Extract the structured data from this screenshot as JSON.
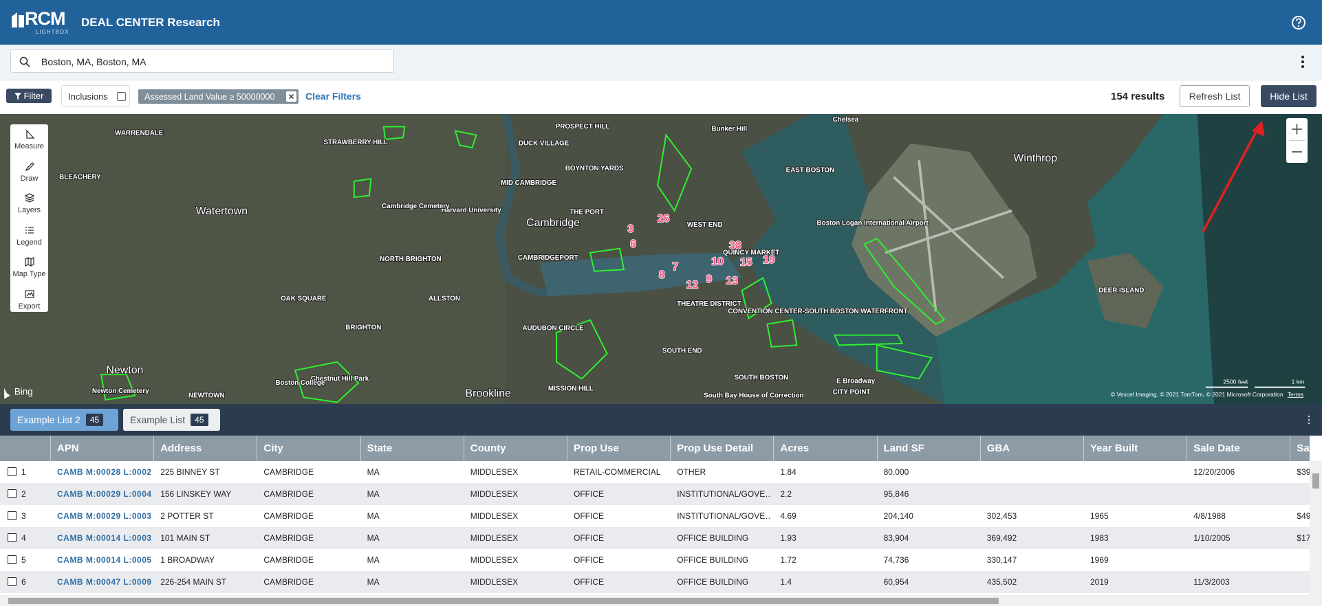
{
  "header": {
    "logo": "RCM",
    "logo_sub": "LIGHTBOX",
    "title": "DEAL CENTER Research"
  },
  "search": {
    "query": "Boston, MA, Boston, MA"
  },
  "filters": {
    "filter_button": "Filter",
    "inclusions": "Inclusions",
    "chip": "Assessed Land Value ≥ 50000000",
    "clear": "Clear Filters",
    "results": "154 results",
    "refresh": "Refresh List",
    "hide": "Hide List"
  },
  "map": {
    "tools": [
      "Measure",
      "Draw",
      "Layers",
      "Legend",
      "Map Type",
      "Export"
    ],
    "labels": [
      "Watertown",
      "Cambridge",
      "Newton",
      "Brookline",
      "Winthrop",
      "EAST BOSTON",
      "NORTH BRIGHTON",
      "ALLSTON",
      "BRIGHTON",
      "OAK SQUARE",
      "SOUTH END",
      "SOUTH BOSTON",
      "DEER ISLAND",
      "STRAWBERRY HILL",
      "PROSPECT HILL",
      "DUCK VILLAGE",
      "BOYNTON YARDS",
      "MID CAMBRIDGE",
      "THE PORT",
      "CAMBRIDGEPORT",
      "WARRENDALE",
      "BLEACHERY",
      "Bunker Hill",
      "Chelsea",
      "AUDUBON CIRCLE",
      "MISSION HILL",
      "WEST END",
      "QUINCY MARKET",
      "THEATRE DISTRICT",
      "Harvard University",
      "Cambridge Cemetery",
      "Chestnut Hill Park",
      "Boston College",
      "Newton Cemetery",
      "NEWTOWN",
      "Boston Logan International Airport",
      "CONVENTION CENTER-SOUTH BOSTON WATERFRONT",
      "E Broadway",
      "CITY POINT",
      "South Bay House of Correction"
    ],
    "markers": [
      "38",
      "10",
      "15",
      "19",
      "7",
      "8",
      "9",
      "12",
      "13",
      "26",
      "6",
      "3"
    ],
    "scale": [
      "2500 feet",
      "1 km"
    ],
    "attribution": "© Vexcel Imaging, © 2021 TomTom, © 2021 Microsoft Corporation",
    "terms": "Terms",
    "provider": "Bing"
  },
  "tabs": [
    {
      "label": "Example List 2",
      "count": 45
    },
    {
      "label": "Example List",
      "count": 45
    }
  ],
  "table": {
    "columns": [
      "APN",
      "Address",
      "City",
      "State",
      "County",
      "Prop Use",
      "Prop Use Detail",
      "Acres",
      "Land SF",
      "GBA",
      "Year Built",
      "Sale Date",
      "Sa"
    ],
    "rows": [
      [
        "1",
        "CAMB M:00028 L:0002",
        "225 BINNEY ST",
        "CAMBRIDGE",
        "MA",
        "MIDDLESEX",
        "RETAIL-COMMERCIAL",
        "OTHER",
        "1.84",
        "80,000",
        null,
        null,
        "12/20/2006",
        "$39"
      ],
      [
        "2",
        "CAMB M:00029 L:0004",
        "156 LINSKEY WAY",
        "CAMBRIDGE",
        "MA",
        "MIDDLESEX",
        "OFFICE",
        "INSTITUTIONAL/GOVE…",
        "2.2",
        "95,846",
        null,
        null,
        null,
        null
      ],
      [
        "3",
        "CAMB M:00029 L:0003",
        "2 POTTER ST",
        "CAMBRIDGE",
        "MA",
        "MIDDLESEX",
        "OFFICE",
        "INSTITUTIONAL/GOVE…",
        "4.69",
        "204,140",
        "302,453",
        "1965",
        "4/8/1988",
        "$49"
      ],
      [
        "4",
        "CAMB M:00014 L:0003",
        "101 MAIN ST",
        "CAMBRIDGE",
        "MA",
        "MIDDLESEX",
        "OFFICE",
        "OFFICE BUILDING",
        "1.93",
        "83,904",
        "369,492",
        "1983",
        "1/10/2005",
        "$17"
      ],
      [
        "5",
        "CAMB M:00014 L:0005",
        "1 BROADWAY",
        "CAMBRIDGE",
        "MA",
        "MIDDLESEX",
        "OFFICE",
        "OFFICE BUILDING",
        "1.72",
        "74,736",
        "330,147",
        "1969",
        null,
        null
      ],
      [
        "6",
        "CAMB M:00047 L:0009",
        "226-254 MAIN ST",
        "CAMBRIDGE",
        "MA",
        "MIDDLESEX",
        "OFFICE",
        "OFFICE BUILDING",
        "1.4",
        "60,954",
        "435,502",
        "2019",
        "11/3/2003",
        null
      ]
    ]
  }
}
